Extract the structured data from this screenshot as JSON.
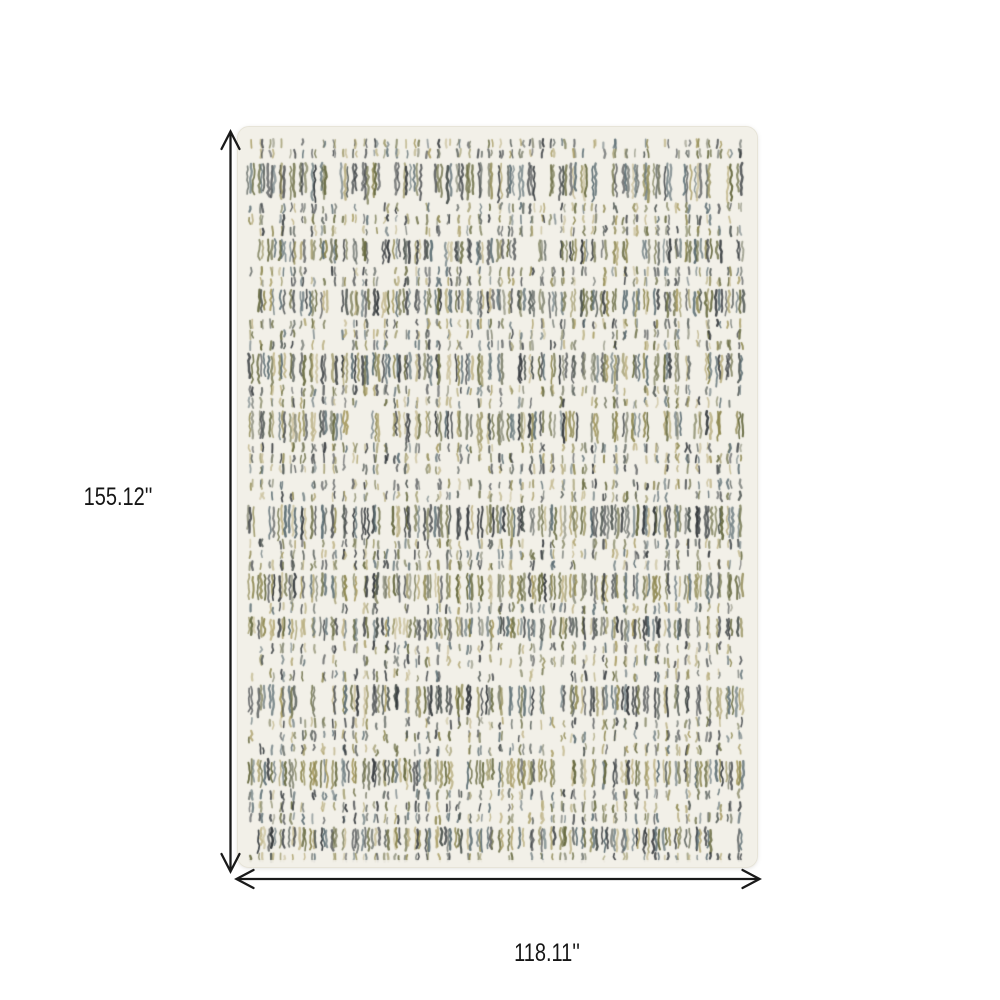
{
  "diagram": {
    "type": "rug-dimension-diagram",
    "height_label": "155.12''",
    "width_label": "118.11''",
    "line_color": "#1a1a1a",
    "label_color": "#151515",
    "background": "#ffffff",
    "rug": {
      "base_color": "#f2f0e8",
      "edge_color": "#e7e4d8",
      "stitch_palette": [
        "#31363a",
        "#4a524e",
        "#65683e",
        "#8d8750",
        "#a89c63",
        "#c2b78c",
        "#596b71",
        "#7b7e6a"
      ]
    }
  }
}
